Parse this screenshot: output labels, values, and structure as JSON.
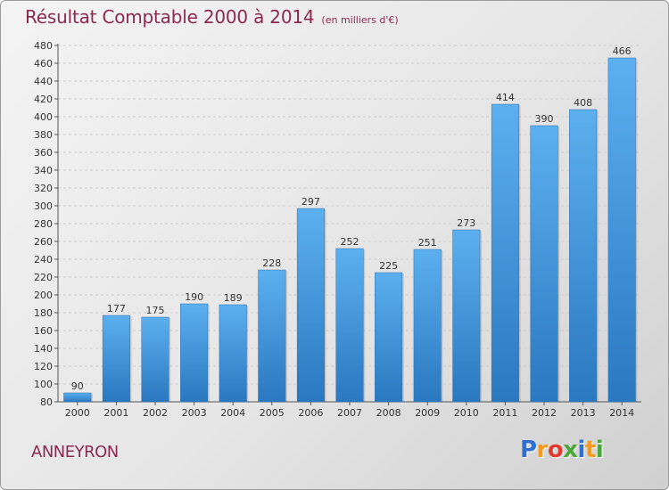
{
  "title": "Résultat Comptable 2000 à 2014",
  "subtitle": "(en milliers d'€)",
  "place": "ANNEYRON",
  "logo": {
    "letters": [
      "P",
      "r",
      "o",
      "x",
      "i",
      "t",
      "i"
    ],
    "colors": [
      "#2e6fd1",
      "#f39a1e",
      "#e23b2e",
      "#49a83a",
      "#2e6fd1",
      "#f39a1e",
      "#49a83a"
    ]
  },
  "chart_data": {
    "type": "bar",
    "categories": [
      "2000",
      "2001",
      "2002",
      "2003",
      "2004",
      "2005",
      "2006",
      "2007",
      "2008",
      "2009",
      "2010",
      "2011",
      "2012",
      "2013",
      "2014"
    ],
    "values": [
      90,
      177,
      175,
      190,
      189,
      228,
      297,
      252,
      225,
      251,
      273,
      414,
      390,
      408,
      466
    ],
    "ylim": [
      80,
      480
    ],
    "ytick_step": 20,
    "grid": true,
    "bar_color": "#3d94de"
  }
}
